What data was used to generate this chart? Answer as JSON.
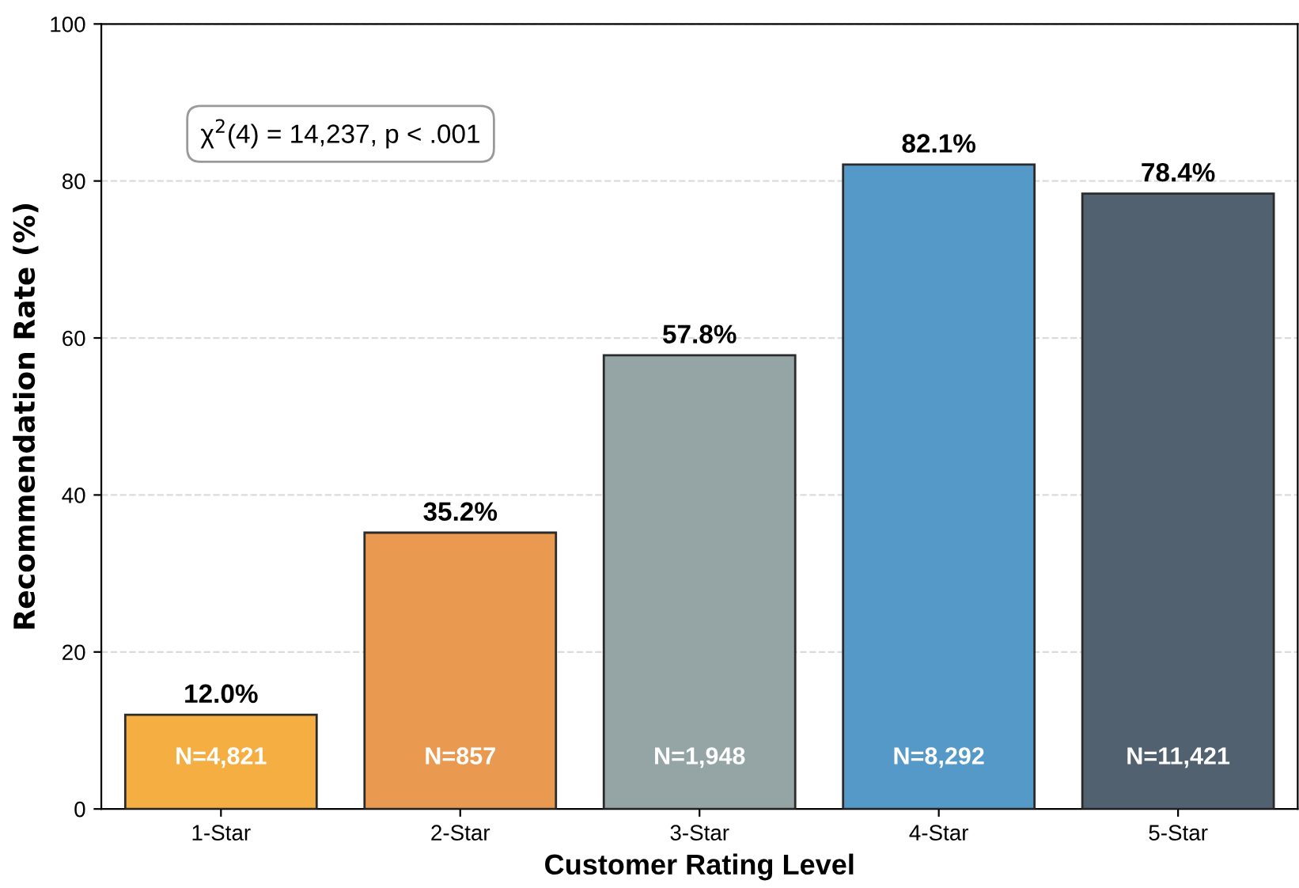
{
  "chart_data": {
    "type": "bar",
    "xlabel": "Customer Rating Level",
    "ylabel": "Recommendation Rate (%)",
    "categories": [
      "1-Star",
      "2-Star",
      "3-Star",
      "4-Star",
      "5-Star"
    ],
    "values": [
      12.0,
      35.2,
      57.8,
      82.1,
      78.4
    ],
    "colors": [
      "#f5ae42",
      "#ea9a50",
      "#95a5a6",
      "#5499c7",
      "#52616f"
    ],
    "value_labels": [
      "12.0%",
      "35.2%",
      "57.8%",
      "82.1%",
      "78.4%"
    ],
    "ylim": [
      0,
      100
    ],
    "yticks": [
      0,
      20,
      40,
      60,
      80,
      100
    ],
    "grid": "y",
    "annotations": [
      "N=4,821",
      "N=857",
      "N=1,948",
      "N=8,292",
      "N=11,421",
      "χ$^{2}$(4) = 14,237, p < .001"
    ]
  }
}
